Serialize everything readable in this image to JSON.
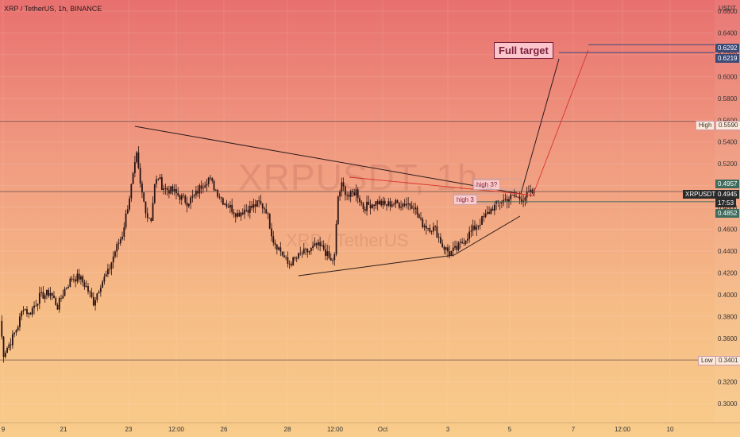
{
  "header": {
    "symbol_title": "XRP / TetherUS, 1h, BINANCE"
  },
  "watermark": {
    "ticker": "XRPUSDT, 1h",
    "name": "XRP / TetherUS"
  },
  "axis": {
    "unit": "USDT"
  },
  "annotations": {
    "full_target": "Full target",
    "high3q": "high 3?",
    "high3": "high 3"
  },
  "tags": {
    "high_label": "High",
    "high_value": "0.5590",
    "low_label": "Low",
    "low_value": "0.3401",
    "target_a": "0.6292",
    "target_b": "0.6219",
    "price_name": "XRPUSDT",
    "price_value": "0.4945",
    "price_time": "17:53",
    "green_upper": "0.4957",
    "green_lower": "0.4852"
  },
  "colors": {
    "candle": "#2a1212",
    "trendline": "#2a1a1a",
    "projection_red": "#d8342f",
    "hline_blue": "#3c4a78",
    "hline_green": "#3f6b5c"
  },
  "chart_data": {
    "type": "candlestick",
    "title": "XRP / TetherUS, 1h, BINANCE",
    "ylabel": "USDT",
    "ylim": [
      0.28,
      0.66
    ],
    "y_ticks": [
      "0.6600",
      "0.6400",
      "0.6200",
      "0.6000",
      "0.5800",
      "0.5600",
      "0.5400",
      "0.5200",
      "0.5000",
      "0.4800",
      "0.4600",
      "0.4400",
      "0.4200",
      "0.4000",
      "0.3800",
      "0.3600",
      "0.3400",
      "0.3200",
      "0.3000"
    ],
    "x_ticks": [
      "9",
      "21",
      "23",
      "12:00",
      "26",
      "28",
      "12:00",
      "Oct",
      "3",
      "5",
      "7",
      "12:00",
      "10"
    ],
    "high": 0.559,
    "low": 0.3401,
    "last_price": 0.4945,
    "targets": [
      0.6292,
      0.6219
    ],
    "anchors": [
      {
        "t": 0,
        "p": 0.376
      },
      {
        "t": 2,
        "p": 0.346
      },
      {
        "t": 6,
        "p": 0.357
      },
      {
        "t": 10,
        "p": 0.372
      },
      {
        "t": 13,
        "p": 0.389
      },
      {
        "t": 16,
        "p": 0.382
      },
      {
        "t": 22,
        "p": 0.398
      },
      {
        "t": 28,
        "p": 0.402
      },
      {
        "t": 32,
        "p": 0.389
      },
      {
        "t": 36,
        "p": 0.405
      },
      {
        "t": 40,
        "p": 0.415
      },
      {
        "t": 44,
        "p": 0.416
      },
      {
        "t": 48,
        "p": 0.407
      },
      {
        "t": 52,
        "p": 0.393
      },
      {
        "t": 56,
        "p": 0.41
      },
      {
        "t": 60,
        "p": 0.42
      },
      {
        "t": 64,
        "p": 0.44
      },
      {
        "t": 68,
        "p": 0.455
      },
      {
        "t": 72,
        "p": 0.49
      },
      {
        "t": 76,
        "p": 0.527
      },
      {
        "t": 78,
        "p": 0.5
      },
      {
        "t": 80,
        "p": 0.485
      },
      {
        "t": 82,
        "p": 0.472
      },
      {
        "t": 84,
        "p": 0.47
      },
      {
        "t": 86,
        "p": 0.5
      },
      {
        "t": 88,
        "p": 0.508
      },
      {
        "t": 90,
        "p": 0.5
      },
      {
        "t": 92,
        "p": 0.497
      },
      {
        "t": 96,
        "p": 0.495
      },
      {
        "t": 100,
        "p": 0.49
      },
      {
        "t": 104,
        "p": 0.485
      },
      {
        "t": 108,
        "p": 0.49
      },
      {
        "t": 112,
        "p": 0.5
      },
      {
        "t": 116,
        "p": 0.507
      },
      {
        "t": 120,
        "p": 0.496
      },
      {
        "t": 124,
        "p": 0.486
      },
      {
        "t": 128,
        "p": 0.48
      },
      {
        "t": 132,
        "p": 0.474
      },
      {
        "t": 136,
        "p": 0.478
      },
      {
        "t": 140,
        "p": 0.48
      },
      {
        "t": 144,
        "p": 0.484
      },
      {
        "t": 148,
        "p": 0.478
      },
      {
        "t": 152,
        "p": 0.45
      },
      {
        "t": 156,
        "p": 0.44
      },
      {
        "t": 160,
        "p": 0.428
      },
      {
        "t": 164,
        "p": 0.432
      },
      {
        "t": 168,
        "p": 0.438
      },
      {
        "t": 172,
        "p": 0.44
      },
      {
        "t": 176,
        "p": 0.445
      },
      {
        "t": 180,
        "p": 0.442
      },
      {
        "t": 184,
        "p": 0.43
      },
      {
        "t": 186,
        "p": 0.435
      },
      {
        "t": 188,
        "p": 0.49
      },
      {
        "t": 190,
        "p": 0.5
      },
      {
        "t": 194,
        "p": 0.49
      },
      {
        "t": 198,
        "p": 0.495
      },
      {
        "t": 202,
        "p": 0.48
      },
      {
        "t": 206,
        "p": 0.483
      },
      {
        "t": 210,
        "p": 0.485
      },
      {
        "t": 214,
        "p": 0.482
      },
      {
        "t": 218,
        "p": 0.484
      },
      {
        "t": 222,
        "p": 0.483
      },
      {
        "t": 226,
        "p": 0.484
      },
      {
        "t": 230,
        "p": 0.482
      },
      {
        "t": 234,
        "p": 0.466
      },
      {
        "t": 238,
        "p": 0.462
      },
      {
        "t": 242,
        "p": 0.46
      },
      {
        "t": 246,
        "p": 0.445
      },
      {
        "t": 250,
        "p": 0.438
      },
      {
        "t": 254,
        "p": 0.442
      },
      {
        "t": 258,
        "p": 0.45
      },
      {
        "t": 262,
        "p": 0.458
      },
      {
        "t": 266,
        "p": 0.465
      },
      {
        "t": 270,
        "p": 0.472
      },
      {
        "t": 274,
        "p": 0.48
      },
      {
        "t": 278,
        "p": 0.485
      },
      {
        "t": 282,
        "p": 0.488
      },
      {
        "t": 286,
        "p": 0.49
      },
      {
        "t": 290,
        "p": 0.488
      },
      {
        "t": 294,
        "p": 0.492
      },
      {
        "t": 297,
        "p": 0.4945
      }
    ]
  }
}
